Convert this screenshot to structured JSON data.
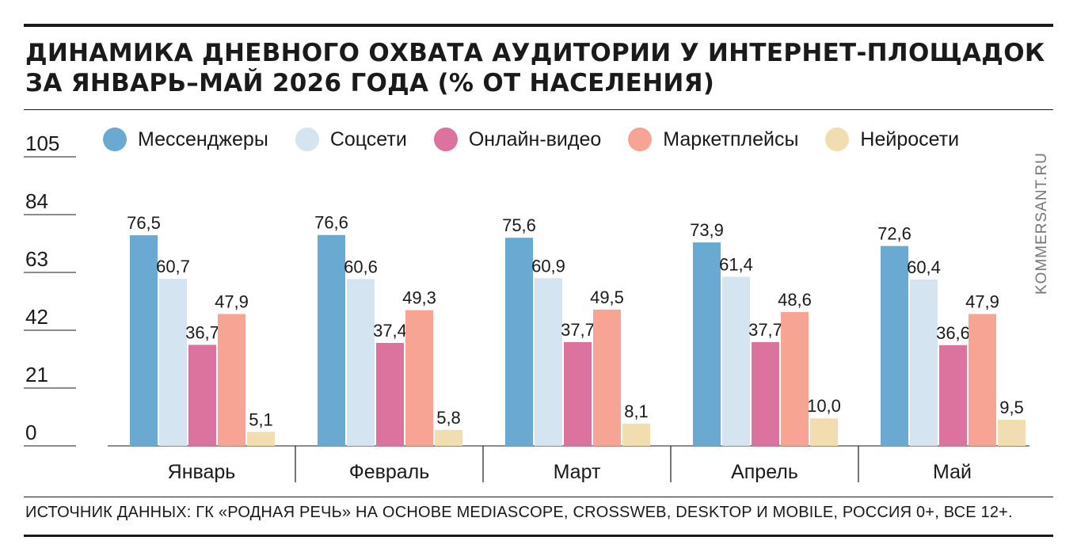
{
  "header": {
    "title_line1": "ДИНАМИКА ДНЕВНОГО ОХВАТА АУДИТОРИИ У ИНТЕРНЕТ-ПЛОЩАДОК",
    "title_line2": "ЗА ЯНВАРЬ–МАЙ 2026 ГОДА (% ОТ НАСЕЛЕНИЯ)"
  },
  "footer": {
    "source": "ИСТОЧНИК ДАННЫХ: ГК «РОДНАЯ РЕЧЬ» НА ОСНОВЕ MEDIASCOPE, CROSSWEB, DESKTOP И MOBILE, РОССИЯ 0+, ВСЕ 12+.",
    "watermark": "KOMMERSANT.RU"
  },
  "chart_data": {
    "type": "bar",
    "title": "ДИНАМИКА ДНЕВНОГО ОХВАТА АУДИТОРИИ У ИНТЕРНЕТ-ПЛОЩАДОК ЗА ЯНВАРЬ–МАЙ 2026 ГОДА (% ОТ НАСЕЛЕНИЯ)",
    "xlabel": "",
    "ylabel": "",
    "categories": [
      "Январь",
      "Февраль",
      "Март",
      "Апрель",
      "Май"
    ],
    "yticks": [
      0,
      21,
      42,
      63,
      84,
      105
    ],
    "ylim": [
      0,
      105
    ],
    "grid": false,
    "legend_position": "top",
    "series": [
      {
        "name": "Мессенджеры",
        "color": "#6aaad2",
        "values": [
          76.5,
          76.6,
          75.6,
          73.9,
          72.6
        ],
        "labels": [
          "76,5",
          "76,6",
          "75,6",
          "73,9",
          "72,6"
        ]
      },
      {
        "name": "Соцсети",
        "color": "#d4e4f1",
        "values": [
          60.7,
          60.6,
          60.9,
          61.4,
          60.4
        ],
        "labels": [
          "60,7",
          "60,6",
          "60,9",
          "61,4",
          "60,4"
        ]
      },
      {
        "name": "Онлайн-видео",
        "color": "#dc729e",
        "values": [
          36.7,
          37.4,
          37.7,
          37.7,
          36.6
        ],
        "labels": [
          "36,7",
          "37,4",
          "37,7",
          "37,7",
          "36,6"
        ]
      },
      {
        "name": "Маркетплейсы",
        "color": "#f8a495",
        "values": [
          47.9,
          49.3,
          49.5,
          48.6,
          47.9
        ],
        "labels": [
          "47,9",
          "49,3",
          "49,5",
          "48,6",
          "47,9"
        ]
      },
      {
        "name": "Нейросети",
        "color": "#f1ddb0",
        "values": [
          5.1,
          5.8,
          8.1,
          10.0,
          9.5
        ],
        "labels": [
          "5,1",
          "5,8",
          "8,1",
          "10,0",
          "9,5"
        ]
      }
    ]
  }
}
